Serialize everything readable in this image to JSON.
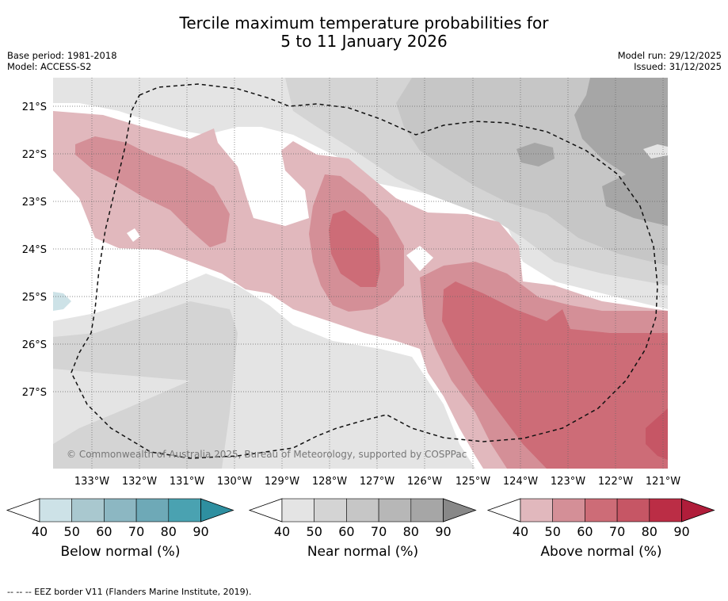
{
  "title": {
    "line1": "Tercile maximum temperature probabilities for",
    "line2": "5 to 11 January 2026"
  },
  "meta": {
    "base_period": "Base period: 1981-2018",
    "model": "Model: ACCESS-S2",
    "model_run": "Model run: 29/12/2025",
    "issued": "Issued: 31/12/2025"
  },
  "map": {
    "lat_labels": [
      "21°S",
      "22°S",
      "23°S",
      "24°S",
      "25°S",
      "26°S",
      "27°S"
    ],
    "lon_labels": [
      "133°W",
      "132°W",
      "131°W",
      "130°W",
      "129°W",
      "128°W",
      "127°W",
      "126°W",
      "125°W",
      "124°W",
      "123°W",
      "122°W",
      "121°W"
    ],
    "copyright": "© Commonwealth of Australia 2025, Bureau of Meteorology, supported by COSPPac",
    "eez_label": "EEZ border"
  },
  "colorbars": [
    {
      "name": "below",
      "label": "Below normal (%)",
      "ticks": [
        "40",
        "50",
        "60",
        "70",
        "80",
        "90"
      ],
      "colors": [
        "#cde2e7",
        "#a9c8cf",
        "#8cb7c2",
        "#6ea9b7",
        "#4aa2b1",
        "#2e8fa0"
      ]
    },
    {
      "name": "near",
      "label": "Near normal (%)",
      "ticks": [
        "40",
        "50",
        "60",
        "70",
        "80",
        "90"
      ],
      "colors": [
        "#e4e4e4",
        "#d4d4d4",
        "#c6c6c6",
        "#b7b7b7",
        "#a6a6a6",
        "#888888"
      ]
    },
    {
      "name": "above",
      "label": "Above normal (%)",
      "ticks": [
        "40",
        "50",
        "60",
        "70",
        "80",
        "90"
      ],
      "colors": [
        "#e1b8bd",
        "#d48f97",
        "#cd6c77",
        "#c65665",
        "#bb2d45",
        "#b01d3a"
      ]
    }
  ],
  "footnote": "--  --  -- EEZ border V11 (Flanders Marine Institute, 2019)."
}
